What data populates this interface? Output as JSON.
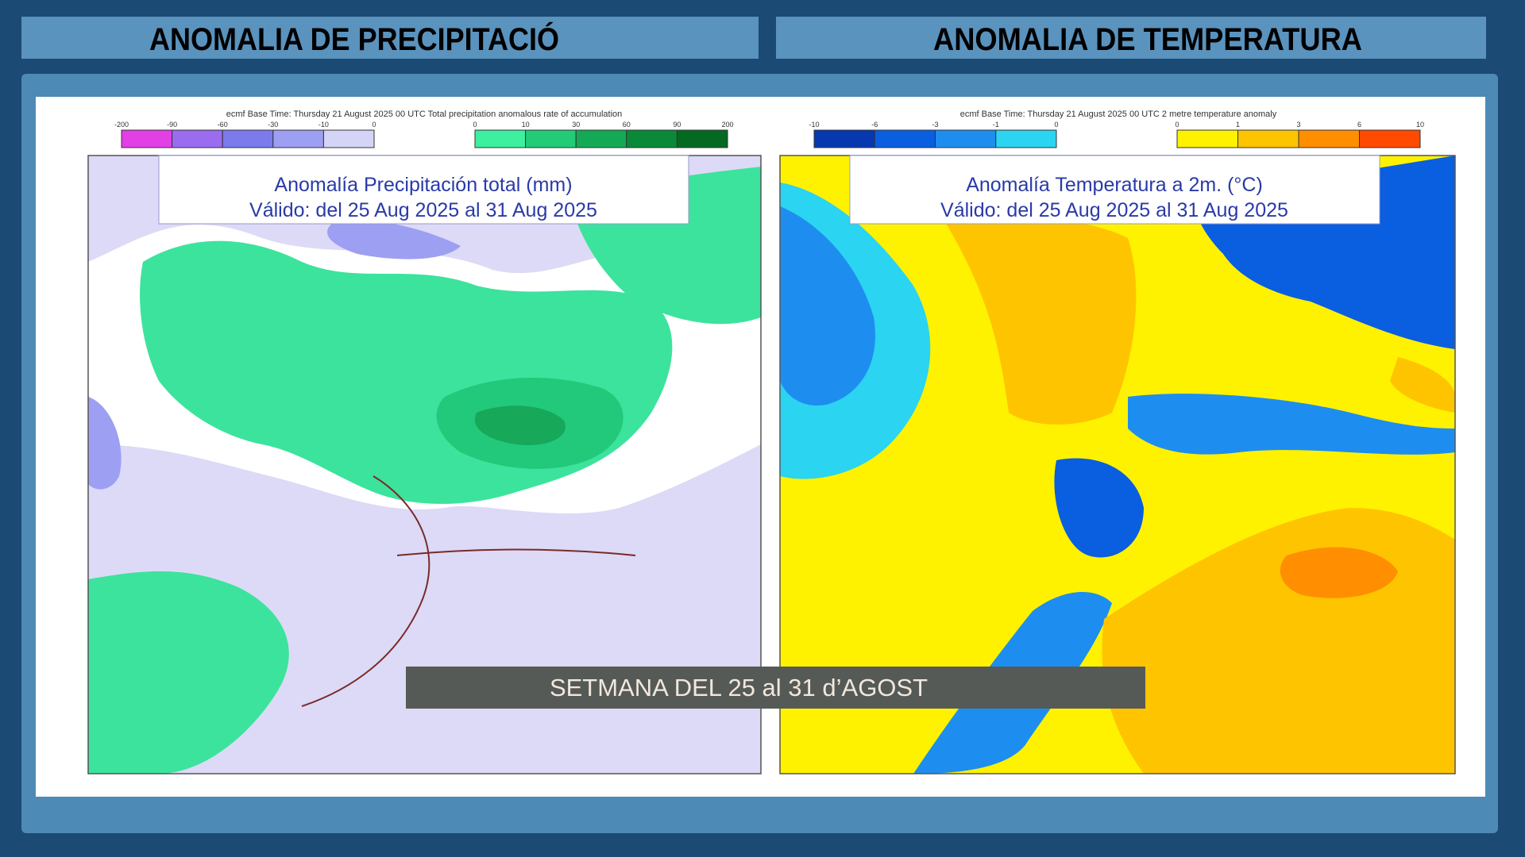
{
  "headers": [
    "ANOMALIA DE PRECIPITACIÓ",
    "ANOMALIA DE TEMPERATURA"
  ],
  "maps": [
    {
      "base_time": "ecmf  Base Time: Thursday 21 August 2025 00 UTC Total precipitation anomalous rate of accumulation",
      "legend": [
        {
          "ticks": [
            -200,
            -90,
            -60,
            -30,
            -10,
            0
          ],
          "colors": [
            "#e23fe6",
            "#9a6cf0",
            "#7b7bee",
            "#9d9ff2",
            "#d4d4f6"
          ]
        },
        {
          "ticks": [
            0,
            10,
            30,
            60,
            90,
            200
          ],
          "colors": [
            "#3cf0a0",
            "#22cc77",
            "#14aa55",
            "#0a8a38",
            "#046a22"
          ]
        }
      ],
      "title": "Anomalía Precipitación total (mm)",
      "valid": "Válido: del 25 Aug 2025 al 31 Aug 2025"
    },
    {
      "base_time": "ecmf  Base Time: Thursday 21 August 2025 00 UTC 2 metre temperature anomaly",
      "legend": [
        {
          "ticks": [
            -10,
            -6,
            -3,
            -1,
            0
          ],
          "colors": [
            "#0638b0",
            "#0a5ee0",
            "#1d8ef0",
            "#2bd4f0"
          ]
        },
        {
          "ticks": [
            0,
            1,
            3,
            6,
            10
          ],
          "colors": [
            "#fff200",
            "#ffc400",
            "#ff8e00",
            "#ff4a00"
          ]
        }
      ],
      "title": "Anomalía Temperatura a 2m. (°C)",
      "valid": "Válido: del 25 Aug 2025 al 31 Aug 2025"
    }
  ],
  "caption": "SETMANA DEL 25 al 31 d’AGOST"
}
